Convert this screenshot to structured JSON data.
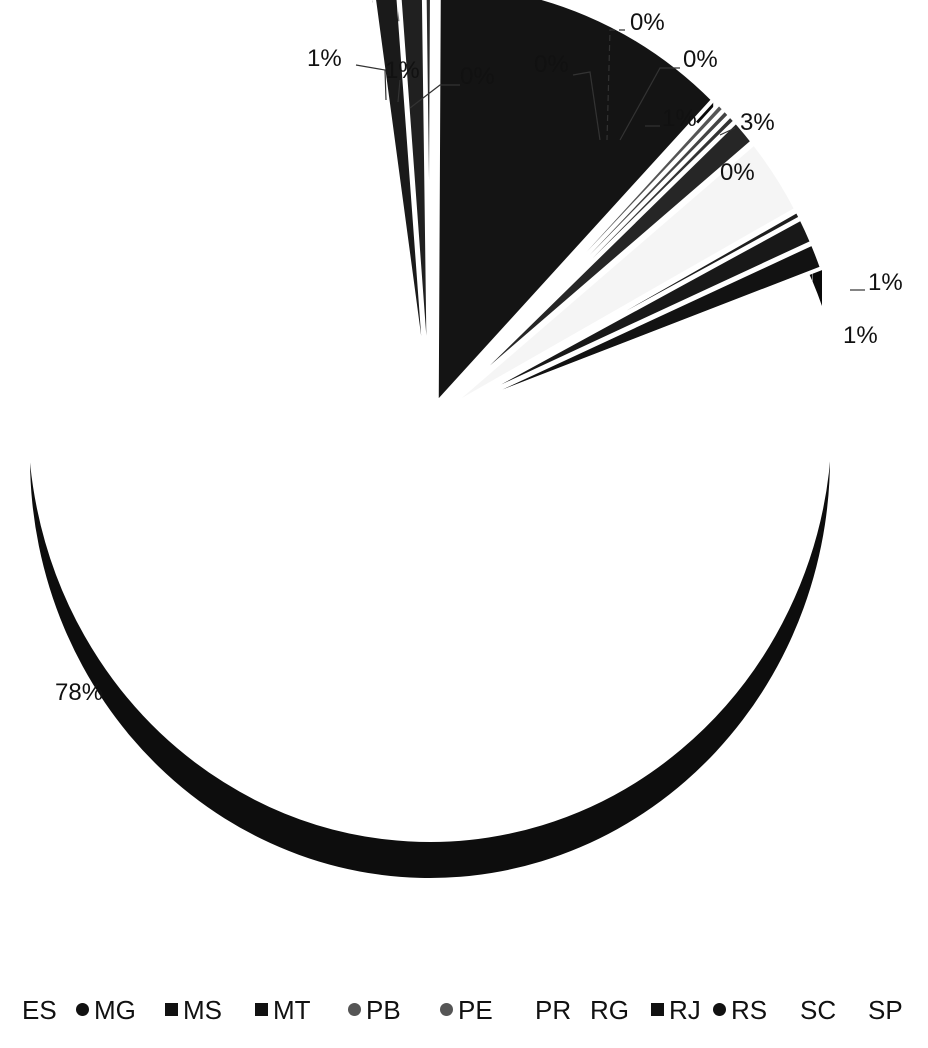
{
  "chart_data": {
    "type": "pie",
    "title": "",
    "legend_position": "bottom",
    "slices": [
      {
        "name": "ES",
        "label": "1%",
        "value": 1,
        "color": "#1a1a1a",
        "marker": "none"
      },
      {
        "name": "MG",
        "label": "1%",
        "value": 1,
        "color": "#202020",
        "marker": "dot"
      },
      {
        "name": "MS",
        "label": "0%",
        "value": 0.3,
        "color": "#2a2a2a",
        "marker": "square"
      },
      {
        "name": "MT",
        "label": "12%",
        "value": 12,
        "color": "#141414",
        "marker": "square"
      },
      {
        "name": "PB",
        "label": "0%",
        "value": 0.3,
        "color": "#555555",
        "marker": "star"
      },
      {
        "name": "PE",
        "label": "0%",
        "value": 0.3,
        "color": "#444444",
        "marker": "star"
      },
      {
        "name": "PR",
        "label": "0%",
        "value": 0.3,
        "color": "#333333",
        "marker": "none"
      },
      {
        "name": "RG",
        "label": "1%",
        "value": 1,
        "color": "#262626",
        "marker": "none"
      },
      {
        "name": "RJ",
        "label": "3%",
        "value": 3,
        "color": "#f5f5f5",
        "marker": "square"
      },
      {
        "name": "RS",
        "label": "0%",
        "value": 0.3,
        "color": "#1e1e1e",
        "marker": "dot"
      },
      {
        "name": "SC",
        "label": "1%",
        "value": 1,
        "color": "#181818",
        "marker": "none"
      },
      {
        "name": "SP",
        "label": "1%",
        "value": 1,
        "color": "#121212",
        "marker": "none"
      },
      {
        "name": "",
        "label": "78%",
        "value": 78,
        "color": "#ffffff",
        "marker": "none"
      }
    ],
    "visible_labels": [
      "1%",
      "1%",
      "0%",
      "0%",
      "0%",
      "0%",
      "1%",
      "3%",
      "0%",
      "1%",
      "1%",
      "78%"
    ],
    "legend": [
      "ES",
      "MG",
      "MS",
      "MT",
      "PB",
      "PE",
      "PR",
      "RG",
      "RJ",
      "RS",
      "SC",
      "SP"
    ]
  }
}
